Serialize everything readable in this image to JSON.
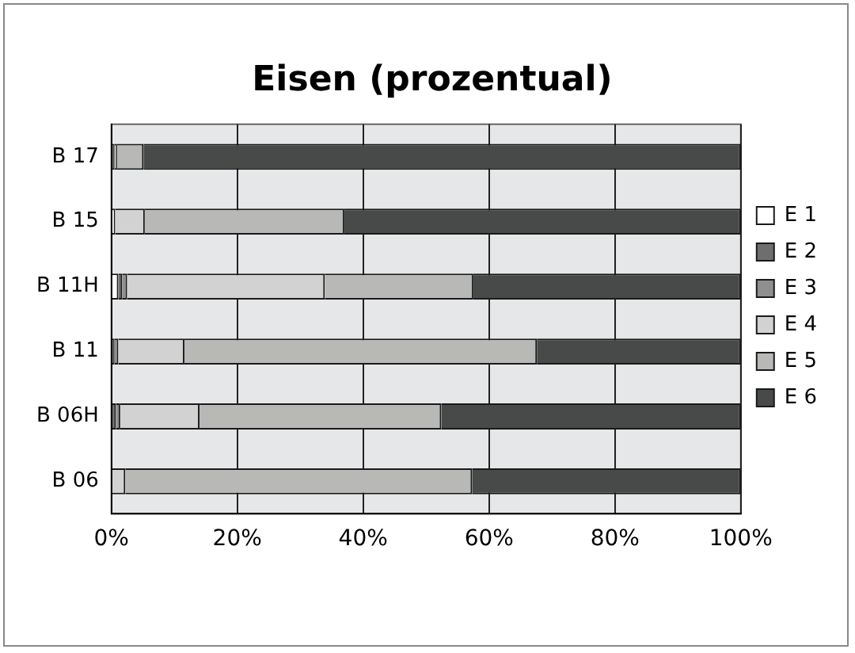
{
  "chart_data": {
    "type": "bar",
    "title": "Eisen (prozentual)",
    "orientation": "horizontal",
    "stacked": true,
    "categories": [
      "B 17",
      "B 15",
      "B 11H",
      "B 11",
      "B 06H",
      "B 06"
    ],
    "series": [
      {
        "name": "E 1",
        "color": "#ffffff",
        "values": [
          0,
          0.6,
          1.1,
          0,
          0,
          0
        ]
      },
      {
        "name": "E 2",
        "color": "#6e6e6e",
        "values": [
          0.5,
          0,
          0.6,
          0.5,
          0.7,
          0
        ]
      },
      {
        "name": "E 3",
        "color": "#8f8f8f",
        "values": [
          0,
          0,
          0.8,
          0.6,
          0.7,
          0
        ]
      },
      {
        "name": "E 4",
        "color": "#d2d2d2",
        "values": [
          0.4,
          4.7,
          31.4,
          10.5,
          12.6,
          2.2
        ]
      },
      {
        "name": "E 5",
        "color": "#b8b8b6",
        "values": [
          4.2,
          31.7,
          23.6,
          56.0,
          38.4,
          55.1
        ]
      },
      {
        "name": "E 6",
        "color": "#474a49",
        "values": [
          94.9,
          63.0,
          42.5,
          32.4,
          47.6,
          42.7
        ]
      }
    ],
    "xlim": [
      0,
      100
    ],
    "xticks": [
      {
        "value": 0,
        "label": "0%"
      },
      {
        "value": 20,
        "label": "20%"
      },
      {
        "value": 40,
        "label": "40%"
      },
      {
        "value": 60,
        "label": "60%"
      },
      {
        "value": 80,
        "label": "80%"
      },
      {
        "value": 100,
        "label": "100%"
      }
    ],
    "grid": "x",
    "legend": "right"
  }
}
